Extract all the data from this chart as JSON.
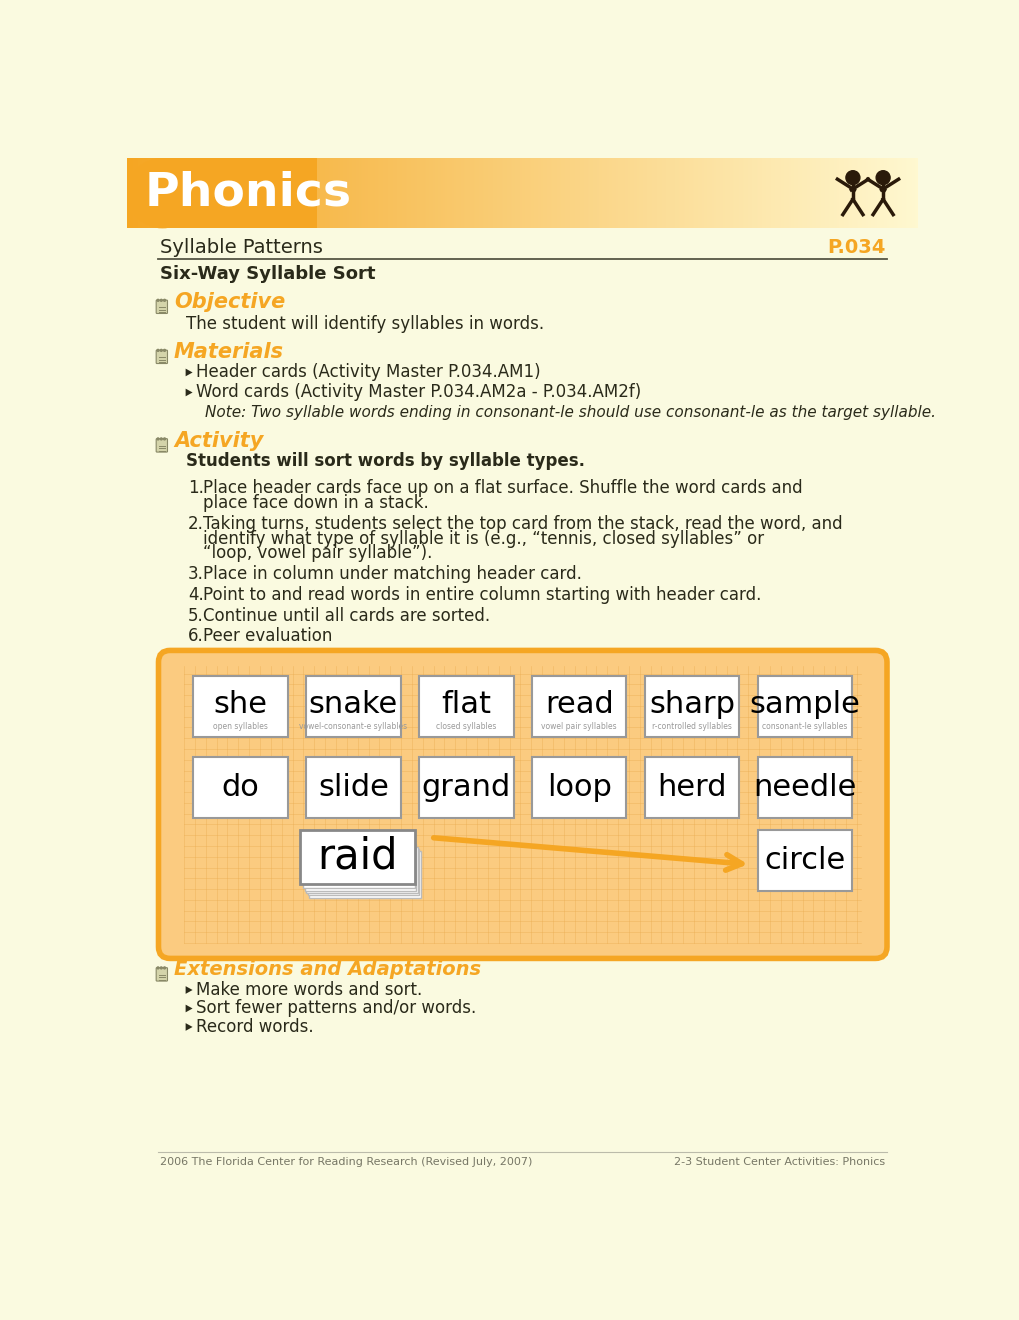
{
  "bg_color": "#FAFAE0",
  "header_bg_left": "#F5A623",
  "header_text": "Phonics",
  "subheader_left": "Syllable Patterns",
  "subheader_right": "P.034",
  "subtitle": "Six-Way Syllable Sort",
  "orange_color": "#F5A623",
  "dark_color": "#2A2A1A",
  "section_objective": "Objective",
  "objective_text": "The student will identify syllables in words.",
  "section_materials": "Materials",
  "materials_items": [
    "Header cards (Activity Master P.034.AM1)",
    "Word cards (Activity Master P.034.AM2a - P.034.AM2f)"
  ],
  "materials_note": "Note: Two syllable words ending in consonant-le should use consonant-le as the target syllable.",
  "section_activity": "Activity",
  "activity_bold": "Students will sort words by syllable types.",
  "activity_steps": [
    [
      "Place header cards face up on a flat surface. Shuffle the word cards and",
      "place face down in a stack."
    ],
    [
      "Taking turns, students select the top card from the stack, read the word, and",
      "identify what type of syllable it is (e.g., “tennis, closed syllables” or",
      "“loop, vowel pair syllable”)."
    ],
    [
      "Place in column under matching header card."
    ],
    [
      "Point to and read words in entire column starting with header card."
    ],
    [
      "Continue until all cards are sorted."
    ],
    [
      "Peer evaluation"
    ]
  ],
  "card_row1": [
    "she",
    "snake",
    "flat",
    "read",
    "sharp",
    "sample"
  ],
  "card_row1_labels": [
    "open syllables",
    "vowel-consonant-e syllables",
    "closed syllables",
    "vowel pair syllables",
    "r-controlled syllables",
    "consonant-le syllables"
  ],
  "card_row2": [
    "do",
    "slide",
    "grand",
    "loop",
    "herd",
    "needle"
  ],
  "card_row3_col6": "circle",
  "bottom_card": "raid",
  "section_extensions": "Extensions and Adaptations",
  "extensions_items": [
    "Make more words and sort.",
    "Sort fewer patterns and/or words.",
    "Record words."
  ],
  "footer_left": "2006 The Florida Center for Reading Research (Revised July, 2007)",
  "footer_right": "2-3 Student Center Activities: Phonics"
}
